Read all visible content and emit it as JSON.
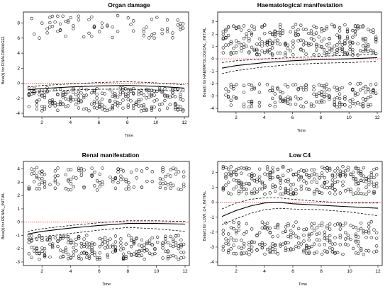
{
  "chart_data": [
    {
      "type": "scatter",
      "title": "Organ damage",
      "xlabel": "Time",
      "ylabel": "Beta(t) for FINALDAMAGE1",
      "xlim": [
        1,
        12
      ],
      "ylim": [
        -4,
        9
      ],
      "xticks": [
        2,
        4,
        6,
        8,
        10,
        12
      ],
      "yticks": [
        -4,
        -2,
        0,
        2,
        4,
        6,
        8
      ],
      "grid": false,
      "legend": "none",
      "reference_line": {
        "y": 0,
        "style": "dotted",
        "color": "#e0332f"
      },
      "colors": {
        "points": "#000000",
        "fit": "#000000",
        "reference": "#e0332f"
      },
      "series": [
        {
          "kind": "points",
          "clusters": [
            {
              "lo": 6.0,
              "hi": 9.0,
              "n": 3,
              "x_frac": 0.65
            },
            {
              "lo": -3.7,
              "hi": -0.6,
              "n": 7,
              "x_frac": 1.0
            }
          ]
        },
        {
          "kind": "smooth",
          "x": [
            1,
            2,
            4,
            6,
            8,
            10,
            12
          ],
          "y": [
            -0.9,
            -0.7,
            -0.5,
            -0.35,
            -0.3,
            -0.4,
            -0.65
          ]
        },
        {
          "kind": "band_upper",
          "x": [
            1,
            2,
            4,
            6,
            8,
            10,
            12
          ],
          "y": [
            -0.5,
            -0.3,
            -0.1,
            0.1,
            0.2,
            0.05,
            -0.2
          ]
        },
        {
          "kind": "band_lower",
          "x": [
            1,
            2,
            4,
            6,
            8,
            10,
            12
          ],
          "y": [
            -1.3,
            -1.1,
            -0.9,
            -0.8,
            -0.8,
            -0.9,
            -1.1
          ]
        }
      ]
    },
    {
      "type": "scatter",
      "title": "Haematological manifestation",
      "xlabel": "Time",
      "ylabel": "Beta(t) for HAEMATOLOGICAL_INITIAL",
      "xlim": [
        1,
        12
      ],
      "ylim": [
        -4,
        3.5
      ],
      "xticks": [
        2,
        4,
        6,
        8,
        10,
        12
      ],
      "yticks": [
        -4,
        -3,
        -2,
        -1,
        0,
        1,
        2,
        3
      ],
      "grid": false,
      "legend": "none",
      "reference_line": {
        "y": 0,
        "style": "dotted",
        "color": "#e0332f"
      },
      "colors": {
        "points": "#000000",
        "fit": "#000000",
        "reference": "#e0332f"
      },
      "series": [
        {
          "kind": "points",
          "clusters": [
            {
              "lo": 0.3,
              "hi": 2.8,
              "n": 8,
              "x_frac": 1.0
            },
            {
              "lo": -3.9,
              "hi": -2.0,
              "n": 6,
              "x_frac": 0.9
            }
          ]
        },
        {
          "kind": "smooth",
          "x": [
            1,
            2,
            4,
            6,
            8,
            10,
            12
          ],
          "y": [
            -0.75,
            -0.55,
            -0.3,
            -0.15,
            -0.05,
            0.0,
            0.1
          ]
        },
        {
          "kind": "band_upper",
          "x": [
            1,
            2,
            4,
            6,
            8,
            10,
            12
          ],
          "y": [
            -0.3,
            -0.15,
            0.0,
            0.1,
            0.2,
            0.3,
            0.35
          ]
        },
        {
          "kind": "band_lower",
          "x": [
            1,
            2,
            4,
            6,
            8,
            10,
            12
          ],
          "y": [
            -1.2,
            -0.95,
            -0.65,
            -0.45,
            -0.35,
            -0.3,
            -0.2
          ]
        }
      ]
    },
    {
      "type": "scatter",
      "title": "Renal manifestation",
      "xlabel": "Time",
      "ylabel": "Beta(t) for RENAL_INITIAL",
      "xlim": [
        1,
        12
      ],
      "ylim": [
        -3,
        4.3
      ],
      "xticks": [
        2,
        4,
        6,
        8,
        10,
        12
      ],
      "yticks": [
        -3,
        -2,
        -1,
        0,
        1,
        2,
        3,
        4
      ],
      "grid": false,
      "legend": "none",
      "reference_line": {
        "y": 0,
        "style": "dotted",
        "color": "#e0332f"
      },
      "colors": {
        "points": "#000000",
        "fit": "#000000",
        "reference": "#e0332f"
      },
      "series": [
        {
          "kind": "points",
          "clusters": [
            {
              "lo": 2.4,
              "hi": 4.1,
              "n": 5,
              "x_frac": 0.85
            },
            {
              "lo": -2.8,
              "hi": -1.0,
              "n": 7,
              "x_frac": 1.0
            }
          ]
        },
        {
          "kind": "smooth",
          "x": [
            1,
            2,
            4,
            6,
            8,
            10,
            12
          ],
          "y": [
            -0.9,
            -0.7,
            -0.45,
            -0.25,
            -0.1,
            -0.1,
            -0.15
          ]
        },
        {
          "kind": "band_upper",
          "x": [
            1,
            2,
            4,
            6,
            8,
            10,
            12
          ],
          "y": [
            -0.7,
            -0.5,
            -0.25,
            -0.05,
            0.1,
            0.1,
            0.05
          ]
        },
        {
          "kind": "band_lower",
          "x": [
            1,
            2,
            4,
            6,
            8,
            10,
            12
          ],
          "y": [
            -1.3,
            -1.1,
            -0.85,
            -0.6,
            -0.4,
            -0.5,
            -0.7
          ]
        }
      ]
    },
    {
      "type": "scatter",
      "title": "Low C4",
      "xlabel": "Time",
      "ylabel": "Beta(t) for LOW_C4_INITIAL",
      "xlim": [
        1,
        12
      ],
      "ylim": [
        -4,
        2.5
      ],
      "xticks": [
        2,
        4,
        6,
        8,
        10,
        12
      ],
      "yticks": [
        -4,
        -3,
        -2,
        -1,
        0,
        1,
        2
      ],
      "grid": false,
      "legend": "none",
      "reference_line": {
        "y": 0,
        "style": "dotted",
        "color": "#e0332f"
      },
      "colors": {
        "points": "#000000",
        "fit": "#000000",
        "reference": "#e0332f"
      },
      "series": [
        {
          "kind": "points",
          "clusters": [
            {
              "lo": 0.5,
              "hi": 2.4,
              "n": 8,
              "x_frac": 1.0
            },
            {
              "lo": -3.5,
              "hi": -1.3,
              "n": 8,
              "x_frac": 1.0
            }
          ]
        },
        {
          "kind": "smooth",
          "x": [
            1,
            2,
            3,
            4,
            5,
            6,
            8,
            10,
            12
          ],
          "y": [
            -0.95,
            -0.55,
            -0.25,
            -0.05,
            0.0,
            -0.1,
            -0.2,
            -0.3,
            -0.4
          ]
        },
        {
          "kind": "band_upper",
          "x": [
            1,
            2,
            3,
            4,
            5,
            6,
            8,
            10,
            12
          ],
          "y": [
            -0.45,
            -0.05,
            0.2,
            0.3,
            0.3,
            0.2,
            0.05,
            -0.05,
            -0.05
          ]
        },
        {
          "kind": "band_lower",
          "x": [
            1,
            2,
            3,
            4,
            5,
            6,
            8,
            10,
            12
          ],
          "y": [
            -1.5,
            -1.1,
            -0.75,
            -0.5,
            -0.4,
            -0.45,
            -0.5,
            -0.65,
            -0.9
          ]
        }
      ]
    }
  ]
}
